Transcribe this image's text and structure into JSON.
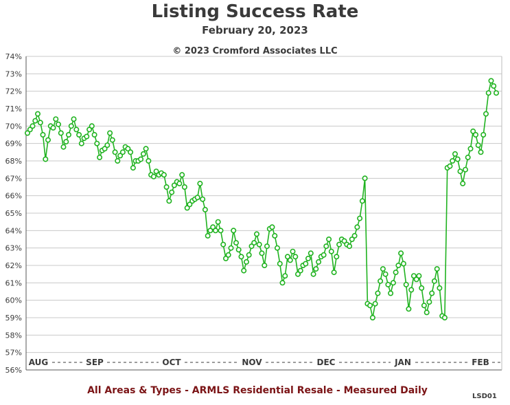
{
  "chart_data": {
    "type": "line",
    "title": "Listing Success Rate",
    "subtitle": "February 20, 2023",
    "copyright": "© 2023 Cromford Associates LLC",
    "footer": "All Areas & Types - ARMLS Residential Resale - Measured Daily",
    "code": "LSD01",
    "ylim": [
      56,
      74
    ],
    "yticks": [
      "56%",
      "57%",
      "58%",
      "59%",
      "60%",
      "61%",
      "62%",
      "63%",
      "64%",
      "65%",
      "66%",
      "67%",
      "68%",
      "69%",
      "70%",
      "71%",
      "72%",
      "73%",
      "74%"
    ],
    "month_labels": [
      "AUG",
      "SEP",
      "OCT",
      "NOV",
      "DEC",
      "JAN",
      "FEB"
    ],
    "grid": true,
    "series_color": "#1fb21f",
    "series": [
      {
        "values": [
          69.6,
          69.8,
          70.0,
          70.3,
          70.7,
          70.2,
          69.5,
          68.1,
          69.2,
          70.0,
          69.9,
          70.4,
          70.1,
          69.6,
          68.8,
          69.1,
          69.5,
          70.0,
          70.4,
          69.8,
          69.5,
          69.0,
          69.3,
          69.4,
          69.8,
          70.0,
          69.5,
          69.0,
          68.2,
          68.6,
          68.7,
          68.9,
          69.6,
          69.2,
          68.5,
          68.0,
          68.3,
          68.5,
          68.8,
          68.7,
          68.5,
          67.6,
          68.0,
          68.0,
          68.1,
          68.4,
          68.7,
          68.0,
          67.2,
          67.1,
          67.4,
          67.2,
          67.3,
          67.2,
          66.5,
          65.7,
          66.2,
          66.6,
          66.8,
          66.7,
          67.2,
          66.5,
          65.3,
          65.5,
          65.7,
          65.8,
          65.9,
          66.7,
          65.8,
          65.2,
          63.7,
          64.0,
          64.2,
          64.0,
          64.5,
          64.0,
          63.2,
          62.4,
          62.6,
          63.0,
          64.0,
          63.3,
          62.9,
          62.5,
          61.7,
          62.2,
          62.6,
          63.1,
          63.3,
          63.8,
          63.2,
          62.7,
          62.0,
          63.1,
          64.1,
          64.2,
          63.7,
          63.0,
          62.1,
          61.0,
          61.4,
          62.5,
          62.3,
          62.8,
          62.5,
          61.5,
          61.7,
          62.0,
          62.1,
          62.4,
          62.7,
          61.5,
          61.8,
          62.2,
          62.5,
          62.6,
          63.1,
          63.5,
          62.8,
          61.6,
          62.5,
          63.2,
          63.5,
          63.4,
          63.2,
          63.1,
          63.5,
          63.7,
          64.2,
          64.7,
          65.7,
          67.0,
          59.8,
          59.7,
          59.0,
          59.8,
          60.4,
          61.1,
          61.8,
          61.5,
          60.9,
          60.4,
          61.0,
          61.6,
          62.0,
          62.7,
          62.1,
          60.9,
          59.5,
          60.6,
          61.4,
          61.2,
          61.4,
          60.7,
          59.7,
          59.3,
          59.9,
          60.4,
          61.1,
          61.8,
          60.7,
          59.1,
          59.0,
          67.6,
          67.7,
          68.0,
          68.4,
          68.1,
          67.4,
          66.7,
          67.5,
          68.2,
          68.7,
          69.7,
          69.5,
          68.9,
          68.5,
          69.5,
          70.7,
          71.9,
          72.6,
          72.3,
          71.9
        ]
      }
    ]
  }
}
